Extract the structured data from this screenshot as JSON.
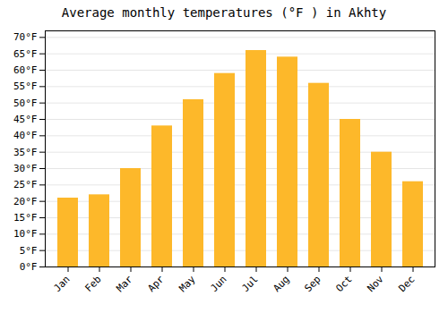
{
  "chart_data": {
    "type": "bar",
    "title": "Average monthly temperatures (°F ) in Akhty",
    "categories": [
      "Jan",
      "Feb",
      "Mar",
      "Apr",
      "May",
      "Jun",
      "Jul",
      "Aug",
      "Sep",
      "Oct",
      "Nov",
      "Dec"
    ],
    "values": [
      21,
      22,
      30,
      43,
      51,
      59,
      66,
      64,
      56,
      45,
      35,
      26
    ],
    "color": "#FDB82A",
    "ylim": [
      0,
      72
    ],
    "yticks": [
      {
        "value": 0,
        "label": "0°F"
      },
      {
        "value": 5,
        "label": "5°F"
      },
      {
        "value": 10,
        "label": "10°F"
      },
      {
        "value": 15,
        "label": "15°F"
      },
      {
        "value": 20,
        "label": "20°F"
      },
      {
        "value": 25,
        "label": "25°F"
      },
      {
        "value": 30,
        "label": "30°F"
      },
      {
        "value": 35,
        "label": "35°F"
      },
      {
        "value": 40,
        "label": "40°F"
      },
      {
        "value": 45,
        "label": "45°F"
      },
      {
        "value": 50,
        "label": "50°F"
      },
      {
        "value": 55,
        "label": "55°F"
      },
      {
        "value": 60,
        "label": "60°F"
      },
      {
        "value": 65,
        "label": "65°F"
      },
      {
        "value": 70,
        "label": "70°F"
      }
    ],
    "grid": true
  }
}
